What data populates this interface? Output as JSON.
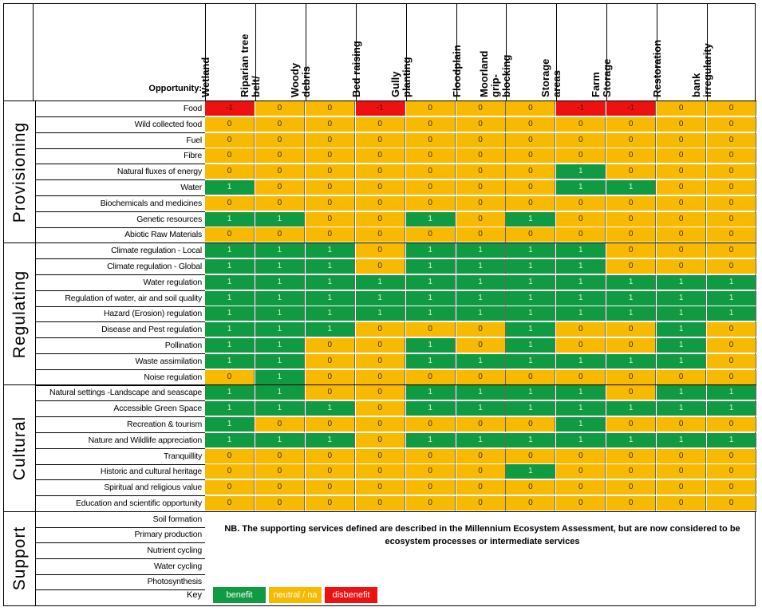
{
  "header": {
    "opportunity_label": "Opportunity:",
    "columns": [
      "Wetland",
      "Riparian tree\nbelt/",
      "Woody\ndebris",
      "Bed raising",
      "Gully\nplanting",
      "Floodplain",
      "Moorland\ngrip-\nblocking",
      "Storage\nareas",
      "Farm\nStorage",
      "Restoration",
      "bank\nirregularity"
    ]
  },
  "groups": [
    {
      "name": "Provisioning",
      "rows": [
        {
          "label": "Food",
          "values": [
            -1,
            0,
            0,
            -1,
            0,
            0,
            0,
            -1,
            -1,
            0,
            0
          ]
        },
        {
          "label": "Wild collected food",
          "values": [
            0,
            0,
            0,
            0,
            0,
            0,
            0,
            0,
            0,
            0,
            0
          ]
        },
        {
          "label": "Fuel",
          "values": [
            0,
            0,
            0,
            0,
            0,
            0,
            0,
            0,
            0,
            0,
            0
          ]
        },
        {
          "label": "Fibre",
          "values": [
            0,
            0,
            0,
            0,
            0,
            0,
            0,
            0,
            0,
            0,
            0
          ]
        },
        {
          "label": "Natural fluxes of energy",
          "values": [
            0,
            0,
            0,
            0,
            0,
            0,
            0,
            1,
            0,
            0,
            0
          ]
        },
        {
          "label": "Water",
          "values": [
            1,
            0,
            0,
            0,
            0,
            0,
            0,
            1,
            1,
            0,
            0
          ]
        },
        {
          "label": "Biochemicals and medicines",
          "values": [
            0,
            0,
            0,
            0,
            0,
            0,
            0,
            0,
            0,
            0,
            0
          ]
        },
        {
          "label": "Genetic resources",
          "values": [
            1,
            1,
            0,
            0,
            1,
            0,
            1,
            0,
            0,
            0,
            0
          ]
        },
        {
          "label": "Abiotic Raw Materials",
          "values": [
            0,
            0,
            0,
            0,
            0,
            0,
            0,
            0,
            0,
            0,
            0
          ]
        }
      ]
    },
    {
      "name": "Regulating",
      "rows": [
        {
          "label": "Climate regulation - Local",
          "values": [
            1,
            1,
            1,
            0,
            1,
            1,
            1,
            1,
            0,
            0,
            0
          ]
        },
        {
          "label": "Climate regulation - Global",
          "values": [
            1,
            1,
            1,
            0,
            1,
            1,
            1,
            1,
            0,
            0,
            0
          ]
        },
        {
          "label": "Water regulation",
          "values": [
            1,
            1,
            1,
            1,
            1,
            1,
            1,
            1,
            1,
            1,
            1
          ]
        },
        {
          "label": "Regulation of water, air and soil quality",
          "values": [
            1,
            1,
            1,
            1,
            1,
            1,
            1,
            1,
            1,
            1,
            1
          ]
        },
        {
          "label": "Hazard (Erosion) regulation",
          "values": [
            1,
            1,
            1,
            1,
            1,
            1,
            1,
            1,
            1,
            1,
            1
          ]
        },
        {
          "label": "Disease and Pest regulation",
          "values": [
            1,
            1,
            1,
            0,
            0,
            0,
            1,
            0,
            0,
            1,
            0
          ]
        },
        {
          "label": "Pollination",
          "values": [
            1,
            1,
            0,
            0,
            1,
            0,
            1,
            0,
            0,
            1,
            0
          ]
        },
        {
          "label": "Waste assimilation",
          "values": [
            1,
            1,
            0,
            0,
            1,
            1,
            1,
            1,
            1,
            1,
            0
          ]
        },
        {
          "label": "Noise regulation",
          "values": [
            0,
            1,
            0,
            0,
            0,
            0,
            0,
            0,
            0,
            0,
            0
          ]
        }
      ]
    },
    {
      "name": "Cultural",
      "rows": [
        {
          "label": "Natural settings -Landscape and seascape",
          "values": [
            1,
            1,
            0,
            0,
            1,
            1,
            1,
            1,
            0,
            1,
            1
          ]
        },
        {
          "label": "Accessible Green Space",
          "values": [
            1,
            1,
            1,
            0,
            1,
            1,
            1,
            1,
            1,
            1,
            1
          ]
        },
        {
          "label": "Recreation & tourism",
          "values": [
            1,
            0,
            0,
            0,
            0,
            0,
            0,
            1,
            0,
            0,
            0
          ]
        },
        {
          "label": "Nature and Wildlife appreciation",
          "values": [
            1,
            1,
            1,
            0,
            1,
            1,
            1,
            1,
            1,
            1,
            1
          ]
        },
        {
          "label": "Tranquillity",
          "values": [
            0,
            0,
            0,
            0,
            0,
            0,
            0,
            0,
            0,
            0,
            0
          ]
        },
        {
          "label": "Historic and cultural heritage",
          "values": [
            0,
            0,
            0,
            0,
            0,
            0,
            1,
            0,
            0,
            0,
            0
          ]
        },
        {
          "label": "Spiritual and religious value",
          "values": [
            0,
            0,
            0,
            0,
            0,
            0,
            0,
            0,
            0,
            0,
            0
          ]
        },
        {
          "label": "Education and scientific opportunity",
          "values": [
            0,
            0,
            0,
            0,
            0,
            0,
            0,
            0,
            0,
            0,
            0
          ]
        }
      ]
    },
    {
      "name": "Support",
      "rows": [
        {
          "label": "Soil formation"
        },
        {
          "label": "Primary production"
        },
        {
          "label": "Nutrient cycling"
        },
        {
          "label": "Water cycling"
        },
        {
          "label": "Photosynthesis"
        }
      ]
    }
  ],
  "note": "NB. The supporting services defined are described in the Millennium Ecosystem Assessment, but are now considered to be ecosystem processes or intermediate services",
  "key": {
    "label": "Key",
    "items": [
      {
        "text": "benefit",
        "color": "#109a42"
      },
      {
        "text": "neutral / na",
        "color": "#f8ba00"
      },
      {
        "text": "disbenefit",
        "color": "#ee1111"
      }
    ]
  },
  "colors": {
    "benefit": "#109a42",
    "neutral": "#f8ba00",
    "disbenefit": "#ee1111"
  }
}
